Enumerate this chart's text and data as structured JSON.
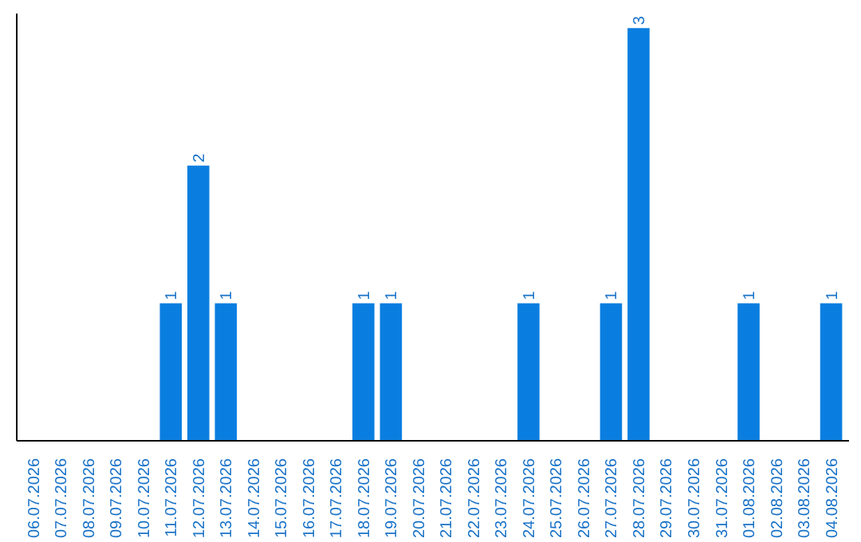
{
  "chart_data": {
    "type": "bar",
    "categories": [
      "06.07.2026",
      "07.07.2026",
      "08.07.2026",
      "09.07.2026",
      "10.07.2026",
      "11.07.2026",
      "12.07.2026",
      "13.07.2026",
      "14.07.2026",
      "15.07.2026",
      "16.07.2026",
      "17.07.2026",
      "18.07.2026",
      "19.07.2026",
      "20.07.2026",
      "21.07.2026",
      "22.07.2026",
      "23.07.2026",
      "24.07.2026",
      "25.07.2026",
      "26.07.2026",
      "27.07.2026",
      "28.07.2026",
      "29.07.2026",
      "30.07.2026",
      "31.07.2026",
      "01.08.2026",
      "02.08.2026",
      "03.08.2026",
      "04.08.2026"
    ],
    "values": [
      0,
      0,
      0,
      0,
      0,
      1,
      2,
      1,
      0,
      0,
      0,
      0,
      1,
      1,
      0,
      0,
      0,
      0,
      1,
      0,
      0,
      1,
      3,
      0,
      0,
      0,
      1,
      0,
      0,
      1
    ],
    "value_labels": [
      null,
      null,
      null,
      null,
      null,
      "1",
      "2",
      "1",
      null,
      null,
      null,
      null,
      "1",
      "1",
      null,
      null,
      null,
      null,
      "1",
      null,
      null,
      "1",
      "3",
      null,
      null,
      null,
      "1",
      null,
      null,
      "1"
    ],
    "color": "#0a7ee0",
    "grid": false,
    "tick_labels": "x"
  }
}
